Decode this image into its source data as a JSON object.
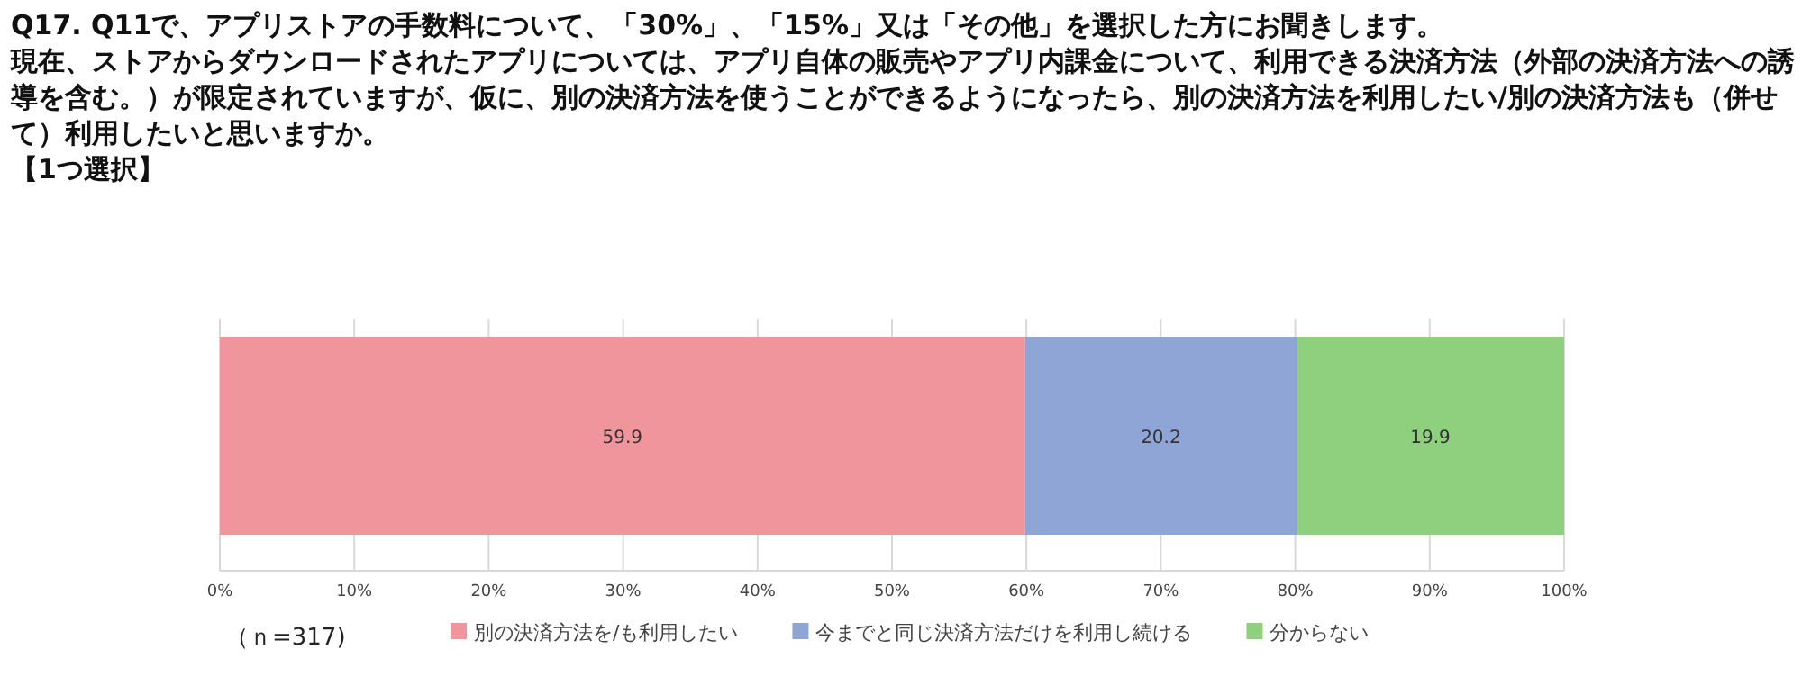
{
  "chart_data": {
    "type": "bar",
    "orientation": "horizontal",
    "stacked": true,
    "title": "Q17. Q11で、アプリストアの手数料について、「30%」、「15%」又は「その他」を選択した方にお聞きします。",
    "subtitle": "現在、ストアからダウンロードされたアプリについては、アプリ自体の販売やアプリ内課金について、利用できる決済方法（外部の決済方法への誘導を含む。）が限定されていますが、仮に、別の決済方法を使うことができるようになったら、別の決済方法を利用したい/別の決済方法も（併せて）利用したいと思いますか。",
    "annotations": [
      "【1つ選択】",
      "（ｎ=317)"
    ],
    "categories": [
      null
    ],
    "series": [
      {
        "name": "別の決済方法を/も利用したい",
        "color": "#f0959b",
        "values": [
          59.9
        ]
      },
      {
        "name": "今までと同じ決済方法だけを利用し続ける",
        "color": "#8ea5d6",
        "values": [
          20.2
        ]
      },
      {
        "name": "分からない",
        "color": "#8fd07f",
        "values": [
          19.9
        ]
      }
    ],
    "xlim": [
      0,
      100
    ],
    "xticks": [
      {
        "value": 0,
        "label": "0%"
      },
      {
        "value": 10,
        "label": "10%"
      },
      {
        "value": 20,
        "label": "20%"
      },
      {
        "value": 30,
        "label": "30%"
      },
      {
        "value": 40,
        "label": "40%"
      },
      {
        "value": 50,
        "label": "50%"
      },
      {
        "value": 60,
        "label": "60%"
      },
      {
        "value": 70,
        "label": "70%"
      },
      {
        "value": 80,
        "label": "80%"
      },
      {
        "value": 90,
        "label": "90%"
      },
      {
        "value": 100,
        "label": "100%"
      }
    ],
    "grid": "x",
    "legend": "bottom",
    "data_labels": true
  }
}
